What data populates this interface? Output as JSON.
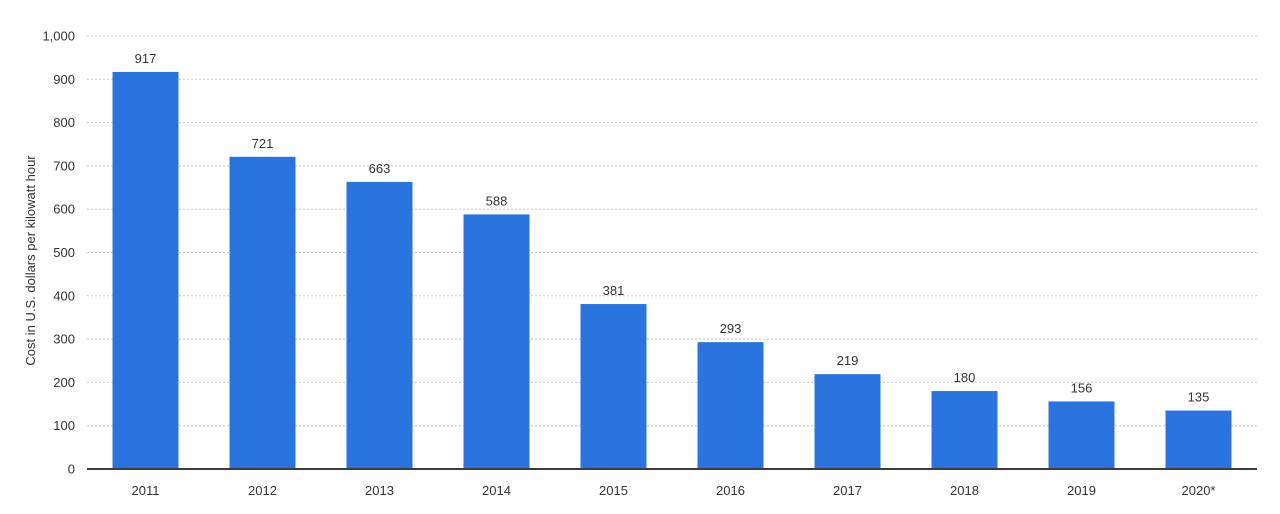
{
  "chart_data": {
    "type": "bar",
    "categories": [
      "2011",
      "2012",
      "2013",
      "2014",
      "2015",
      "2016",
      "2017",
      "2018",
      "2019",
      "2020*"
    ],
    "values": [
      917,
      721,
      663,
      588,
      381,
      293,
      219,
      180,
      156,
      135
    ],
    "data_labels": [
      "917",
      "721",
      "663",
      "588",
      "381",
      "293",
      "219",
      "180",
      "156",
      "135"
    ],
    "title": "",
    "xlabel": "",
    "ylabel": "Cost in U.S. dollars per kilowatt hour",
    "ylim": [
      0,
      1000
    ],
    "yticks": [
      0,
      100,
      200,
      300,
      400,
      500,
      600,
      700,
      800,
      900,
      1000
    ],
    "ytick_labels": [
      "0",
      "100",
      "200",
      "300",
      "400",
      "500",
      "600",
      "700",
      "800",
      "900",
      "1,000"
    ],
    "grid": true,
    "legend": "none",
    "colors": {
      "bar": "#2a74df",
      "grid": "#c8c8c8",
      "axis": "#3c3c3c",
      "text": "#333333"
    }
  }
}
